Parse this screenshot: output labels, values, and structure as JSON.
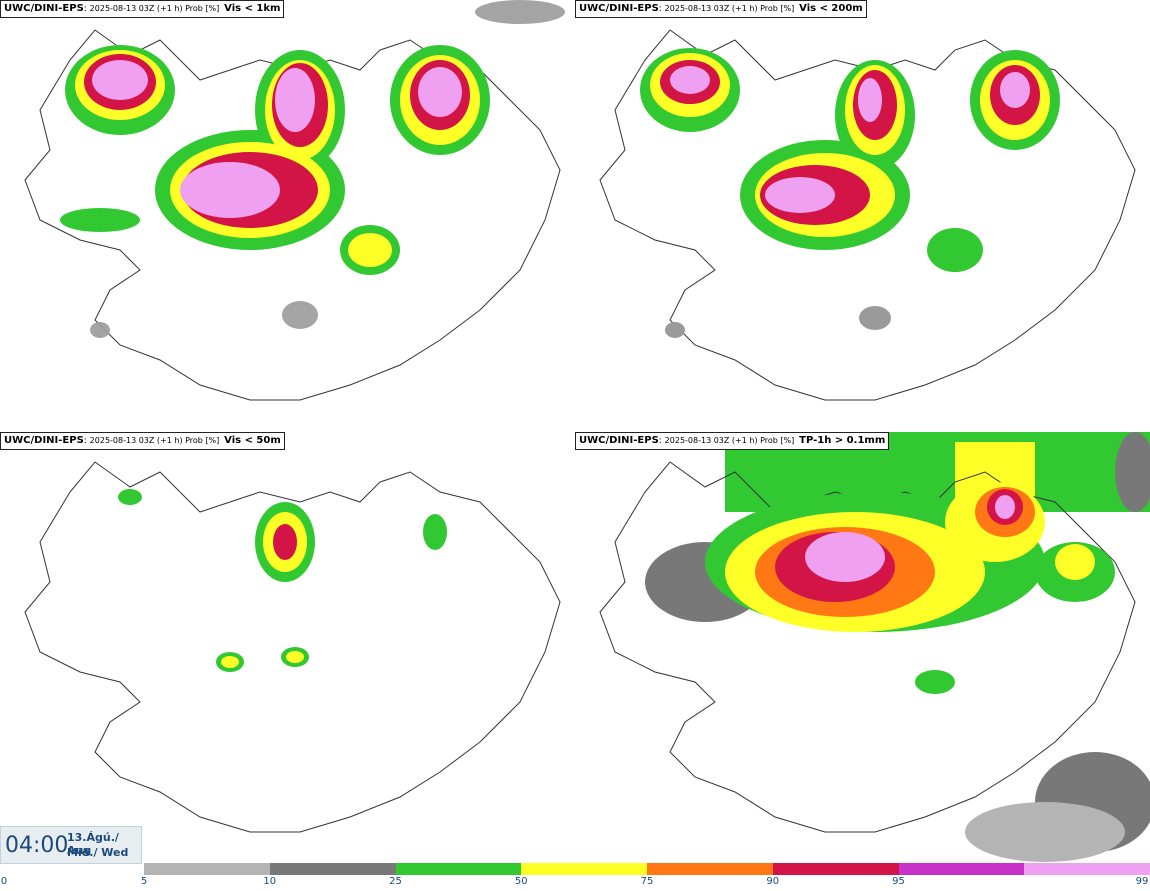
{
  "panels": [
    {
      "source": "UWC/DINI-EPS",
      "meta": "2025-08-13 03Z (+1 h) Prob [%]",
      "variable": "Vis < 1km"
    },
    {
      "source": "UWC/DINI-EPS",
      "meta": "2025-08-13 03Z (+1 h) Prob [%]",
      "variable": "Vis < 200m"
    },
    {
      "source": "UWC/DINI-EPS",
      "meta": "2025-08-13 03Z (+1 h) Prob [%]",
      "variable": "Vis < 50m"
    },
    {
      "source": "UWC/DINI-EPS",
      "meta": "2025-08-13 03Z (+1 h) Prob [%]",
      "variable": "TP-1h > 0.1mm"
    }
  ],
  "time": {
    "value": "04:00",
    "date_line1": "13.Ágú./ Aug",
    "date_line2": "Mið./ Wed"
  },
  "legend": {
    "colors": [
      "#b4b4b4",
      "#787878",
      "#32c832",
      "#ffff28",
      "#ff7814",
      "#d21446",
      "#c832c8",
      "#f0a0f0"
    ],
    "ticks": [
      "0",
      "5",
      "10",
      "25",
      "50",
      "75",
      "90",
      "95",
      "99"
    ]
  }
}
